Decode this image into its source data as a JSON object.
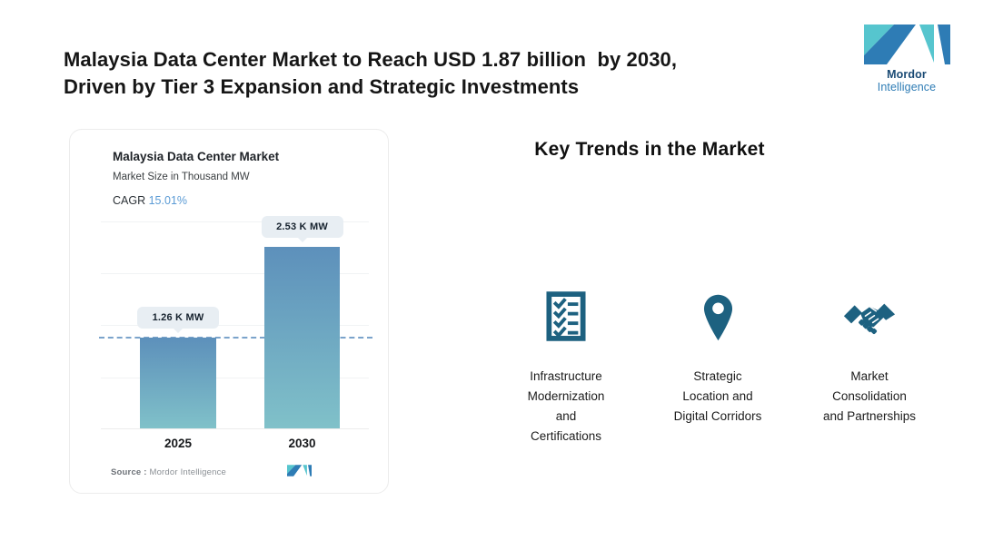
{
  "header": {
    "title": "Malaysia Data Center Market to Reach USD 1.87 billion  by 2030,\nDriven by Tier 3 Expansion and Strategic Investments",
    "logo": {
      "brand_bold": "Mordor",
      "brand_regular": "Intelligence"
    }
  },
  "chart_card": {
    "title": "Malaysia Data Center Market",
    "subtitle": "Market Size in Thousand MW",
    "cagr_label": "CAGR",
    "cagr_value": "15.01%",
    "source_label": "Source :",
    "source_value": "Mordor Intelligence"
  },
  "chart_data": {
    "type": "bar",
    "title": "Malaysia Data Center Market",
    "subtitle": "Market Size in Thousand MW",
    "unit": "Thousand MW",
    "categories": [
      "2025",
      "2030"
    ],
    "values": [
      1.26,
      2.53
    ],
    "value_labels": [
      "1.26 K MW",
      "2.53 K MW"
    ],
    "cagr": "15.01%",
    "ylim": [
      0,
      2.53
    ],
    "grid": true,
    "legend": "none",
    "annotations": [
      "horizontal dashed reference line at the 2025 value level"
    ]
  },
  "trends": {
    "heading": "Key Trends in the Market",
    "items": [
      {
        "icon": "checklist-icon",
        "label": "Infrastructure\nModernization\nand\nCertifications"
      },
      {
        "icon": "location-pin-icon",
        "label": "Strategic\nLocation and\nDigital Corridors"
      },
      {
        "icon": "handshake-icon",
        "label": "Market\nConsolidation\nand Partnerships"
      }
    ]
  },
  "colors": {
    "accent_teal": "#56c5ce",
    "accent_blue": "#2e7cb5",
    "brand_navy": "#1a4a74",
    "icon_color": "#1d6180",
    "bar_top": "#5d90bb",
    "bar_bottom": "#80c1c9",
    "dash_line": "#7ba3cb",
    "cagr_value_color": "#5b9bd5",
    "tooltip_bg": "#e8eef3"
  }
}
